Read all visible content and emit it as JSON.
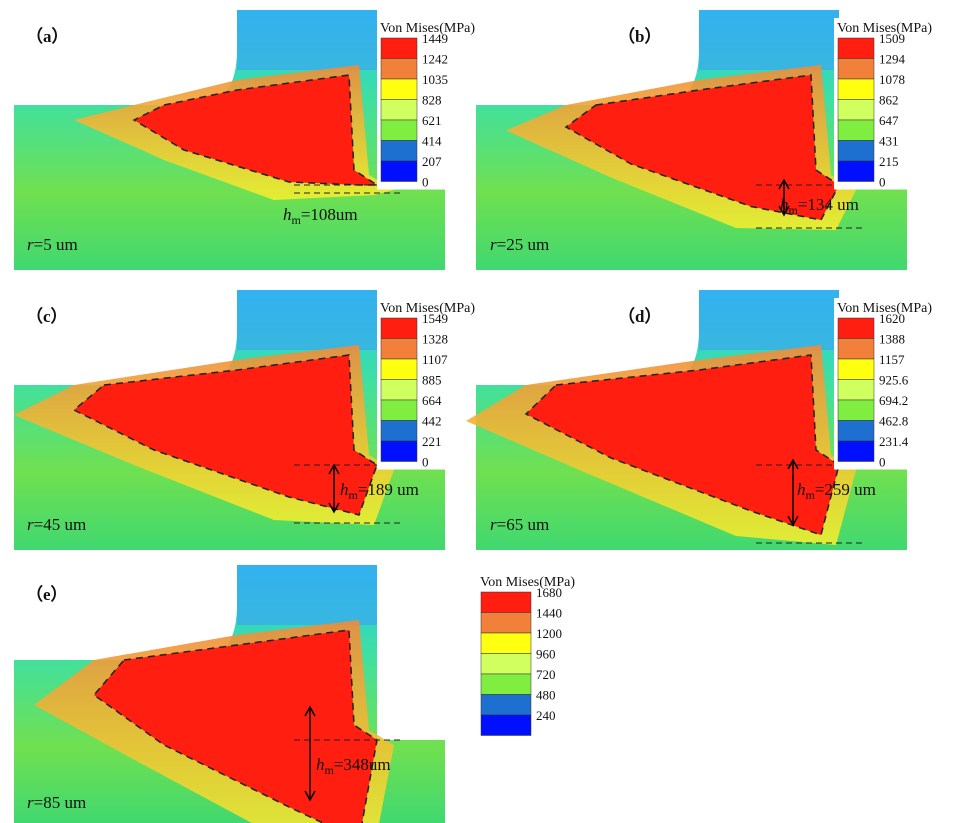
{
  "legend_colors": [
    "#ff1e10",
    "#f0803a",
    "#ffff10",
    "#d0ff60",
    "#80ee40",
    "#1e70d0",
    "#0010ff"
  ],
  "panels": [
    {
      "label": "（a）",
      "legend_title": "Von Mises(MPa)",
      "legend_ticks": [
        1449,
        1242,
        1035,
        828,
        621,
        414,
        207,
        0
      ],
      "r": {
        "symbol": "r",
        "text": "=5 um"
      },
      "hm": {
        "symbol": "h",
        "sub": "m",
        "text": "=108um"
      }
    },
    {
      "label": "（b）",
      "legend_title": "Von Mises(MPa)",
      "legend_ticks": [
        1509,
        1294,
        1078,
        862,
        647,
        431,
        215,
        0
      ],
      "r": {
        "symbol": "r",
        "text": "=25 um"
      },
      "hm": {
        "symbol": "h",
        "sub": "m",
        "text": "=134 um"
      }
    },
    {
      "label": "（c）",
      "legend_title": "Von Mises(MPa)",
      "legend_ticks": [
        1549,
        1328,
        1107,
        885,
        664,
        442,
        221,
        0
      ],
      "r": {
        "symbol": "r",
        "text": "=45 um"
      },
      "hm": {
        "symbol": "h",
        "sub": "m",
        "text": "=189 um"
      }
    },
    {
      "label": "（d）",
      "legend_title": "Von Mises(MPa)",
      "legend_ticks": [
        1620,
        1388,
        1157,
        925.6,
        694.2,
        462.8,
        231.4,
        0
      ],
      "r": {
        "symbol": "r",
        "text": "=65 um"
      },
      "hm": {
        "symbol": "h",
        "sub": "m",
        "text": "=259 um"
      }
    },
    {
      "label": "（e）",
      "legend_title": "Von Mises(MPa)",
      "legend_ticks": [
        1680,
        1440,
        1200,
        960,
        720,
        480,
        240
      ],
      "r": {
        "symbol": "r",
        "text": "=85 um"
      },
      "hm": {
        "symbol": "h",
        "sub": "m",
        "text": "=348um"
      }
    }
  ]
}
